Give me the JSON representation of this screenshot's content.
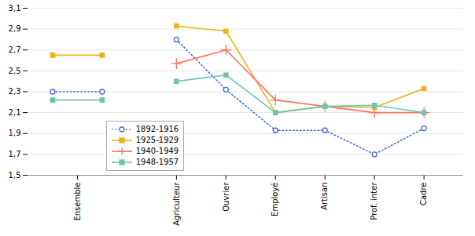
{
  "chart_data": {
    "type": "line",
    "categories": [
      "Ensemble",
      "Agriculteur",
      "Ouvrier",
      "Employé",
      "Artisan",
      "Prof. inter",
      "Cadre"
    ],
    "series": [
      {
        "name": "1892-1916",
        "values": [
          2.3,
          2.8,
          2.32,
          1.93,
          1.93,
          1.7,
          1.95
        ],
        "marker": "circle-open",
        "line_style": "dotted"
      },
      {
        "name": "1925-1929",
        "values": [
          2.65,
          2.93,
          2.88,
          2.1,
          2.16,
          2.15,
          2.33
        ],
        "marker": "square",
        "line_style": "solid"
      },
      {
        "name": "1940-1949",
        "values": [
          null,
          2.57,
          2.7,
          2.22,
          2.16,
          2.1,
          2.1
        ],
        "marker": "plus",
        "line_style": "solid"
      },
      {
        "name": "1948-1957",
        "values": [
          2.22,
          2.4,
          2.46,
          2.1,
          2.16,
          2.17,
          2.1
        ],
        "marker": "square",
        "line_style": "solid"
      }
    ],
    "ylim": [
      1.5,
      3.1
    ],
    "yticks": [
      {
        "value": 1.5,
        "label": "1,5"
      },
      {
        "value": 1.7,
        "label": "1,7"
      },
      {
        "value": 1.9,
        "label": "1,9"
      },
      {
        "value": 2.1,
        "label": "2,1"
      },
      {
        "value": 2.3,
        "label": "2,3"
      },
      {
        "value": 2.5,
        "label": "2,5"
      },
      {
        "value": 2.7,
        "label": "2,7"
      },
      {
        "value": 2.9,
        "label": "2,9"
      },
      {
        "value": 3.1,
        "label": "3,1"
      }
    ],
    "grid": true,
    "legend": "lower left"
  }
}
